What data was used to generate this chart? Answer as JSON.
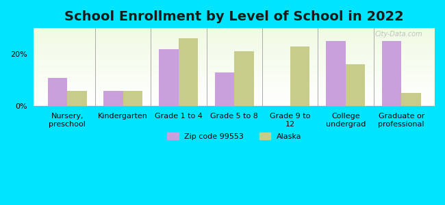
{
  "title": "School Enrollment by Level of School in 2022",
  "categories": [
    "Nursery,\npreschool",
    "Kindergarten",
    "Grade 1 to 4",
    "Grade 5 to 8",
    "Grade 9 to\n12",
    "College\nundergrad",
    "Graduate or\nprofessional"
  ],
  "zip_values": [
    11,
    6,
    22,
    13,
    0,
    25,
    25
  ],
  "alaska_values": [
    6,
    6,
    26,
    21,
    23,
    16,
    5
  ],
  "zip_color": "#c9a0dc",
  "alaska_color": "#c8cc8a",
  "background_color": "#00e5ff",
  "plot_bg_top": "#f0f8e8",
  "plot_bg_bottom": "#ffffff",
  "ylabel_ticks": [
    "0%",
    "20%"
  ],
  "yticks": [
    0,
    20
  ],
  "ylim": [
    0,
    30
  ],
  "bar_width": 0.35,
  "title_fontsize": 14,
  "tick_fontsize": 8,
  "legend_label_zip": "Zip code 99553",
  "legend_label_alaska": "Alaska",
  "watermark": "City-Data.com"
}
